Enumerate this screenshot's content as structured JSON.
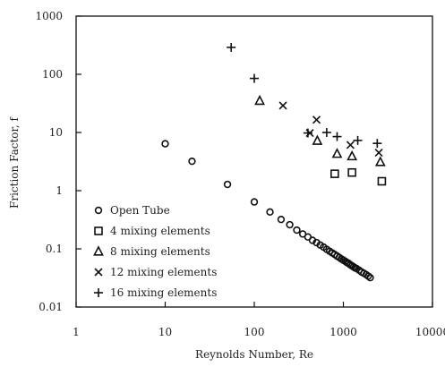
{
  "chart_data": {
    "type": "scatter",
    "title": "",
    "xlabel": "Reynolds Number, Re",
    "ylabel": "Friction Factor, f",
    "xscale": "log",
    "yscale": "log",
    "xlim": [
      1,
      10000
    ],
    "ylim": [
      0.01,
      1000
    ],
    "x_ticks": [
      1,
      10,
      100,
      1000,
      10000
    ],
    "x_tick_labels": [
      "1",
      "10",
      "100",
      "1000",
      "10000"
    ],
    "y_ticks": [
      0.01,
      0.1,
      1,
      10,
      100,
      1000
    ],
    "y_tick_labels": [
      "0.01",
      "0.1",
      "1",
      "10",
      "100",
      "1000"
    ],
    "grid": false,
    "legend_position": "bottom-left",
    "series": [
      {
        "name": "Open Tube",
        "marker": "circle",
        "points": [
          [
            10,
            6.4
          ],
          [
            20,
            3.2
          ],
          [
            50,
            1.28
          ],
          [
            100,
            0.64
          ],
          [
            150,
            0.43
          ],
          [
            200,
            0.32
          ],
          [
            250,
            0.26
          ],
          [
            300,
            0.21
          ],
          [
            350,
            0.18
          ],
          [
            400,
            0.16
          ],
          [
            450,
            0.14
          ],
          [
            500,
            0.128
          ],
          [
            550,
            0.116
          ],
          [
            600,
            0.107
          ],
          [
            650,
            0.098
          ],
          [
            700,
            0.091
          ],
          [
            750,
            0.085
          ],
          [
            800,
            0.08
          ],
          [
            850,
            0.075
          ],
          [
            900,
            0.071
          ],
          [
            950,
            0.067
          ],
          [
            1000,
            0.064
          ],
          [
            1050,
            0.061
          ],
          [
            1100,
            0.058
          ],
          [
            1150,
            0.056
          ],
          [
            1200,
            0.053
          ],
          [
            1250,
            0.051
          ],
          [
            1300,
            0.049
          ],
          [
            1350,
            0.047
          ],
          [
            1400,
            0.046
          ],
          [
            1500,
            0.043
          ],
          [
            1600,
            0.04
          ],
          [
            1700,
            0.038
          ],
          [
            1800,
            0.036
          ],
          [
            1900,
            0.034
          ],
          [
            2000,
            0.032
          ]
        ]
      },
      {
        "name": "4 mixing elements",
        "marker": "square",
        "points": [
          [
            800,
            1.95
          ],
          [
            1250,
            2.05
          ],
          [
            2700,
            1.45
          ]
        ]
      },
      {
        "name": "8 mixing elements",
        "marker": "triangle",
        "points": [
          [
            115,
            35
          ],
          [
            510,
            7.2
          ],
          [
            850,
            4.3
          ],
          [
            1250,
            3.9
          ],
          [
            2600,
            3.1
          ]
        ]
      },
      {
        "name": "12 mixing elements",
        "marker": "x",
        "points": [
          [
            210,
            29
          ],
          [
            420,
            9.8
          ],
          [
            500,
            16.5
          ],
          [
            1200,
            6.1
          ],
          [
            2500,
            4.5
          ]
        ]
      },
      {
        "name": "16 mixing elements",
        "marker": "plus",
        "points": [
          [
            55,
            290
          ],
          [
            100,
            85
          ],
          [
            400,
            9.8
          ],
          [
            650,
            10
          ],
          [
            850,
            8.5
          ],
          [
            1450,
            7.3
          ],
          [
            2400,
            6.5
          ]
        ]
      }
    ]
  }
}
